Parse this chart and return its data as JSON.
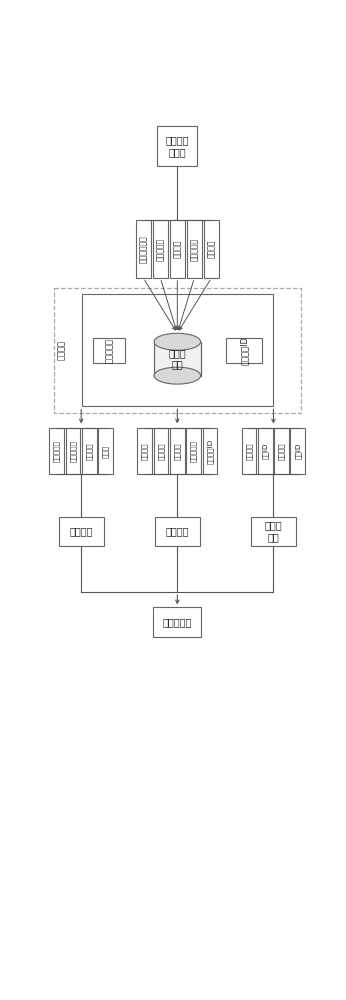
{
  "title_box": "制造任务\n信息表",
  "task_fields": [
    "制造任务序号",
    "制造任务名",
    "工件材料",
    "加工面类型",
    "加工精度"
  ],
  "mapping_label": "映射目录",
  "db_label": "刀具案\n例库",
  "source_code_box": "刀具资源码",
  "type_id_box": "刀具类别ID",
  "tool_fields_left": [
    "刀具资源码",
    "刀具序列码",
    "刀具题目",
    "关键字"
  ],
  "tool_fields_mid": [
    "初削深度",
    "进给速度",
    "初削速度",
    "加工面类型",
    "刀具类别ID"
  ],
  "tool_fields_right": [
    "地域名称",
    "地域ID",
    "公司名称",
    "公司ID"
  ],
  "box_tool_info": "刀具信息",
  "box_process_info": "工艺信息",
  "box_supplier_info": "供货商\n信息",
  "bottom_box": "刀具信息库",
  "bg_color": "#ffffff",
  "border_color": "#666666",
  "dashed_color": "#aaaaaa",
  "line_color": "#555555",
  "text_color": "#222222"
}
